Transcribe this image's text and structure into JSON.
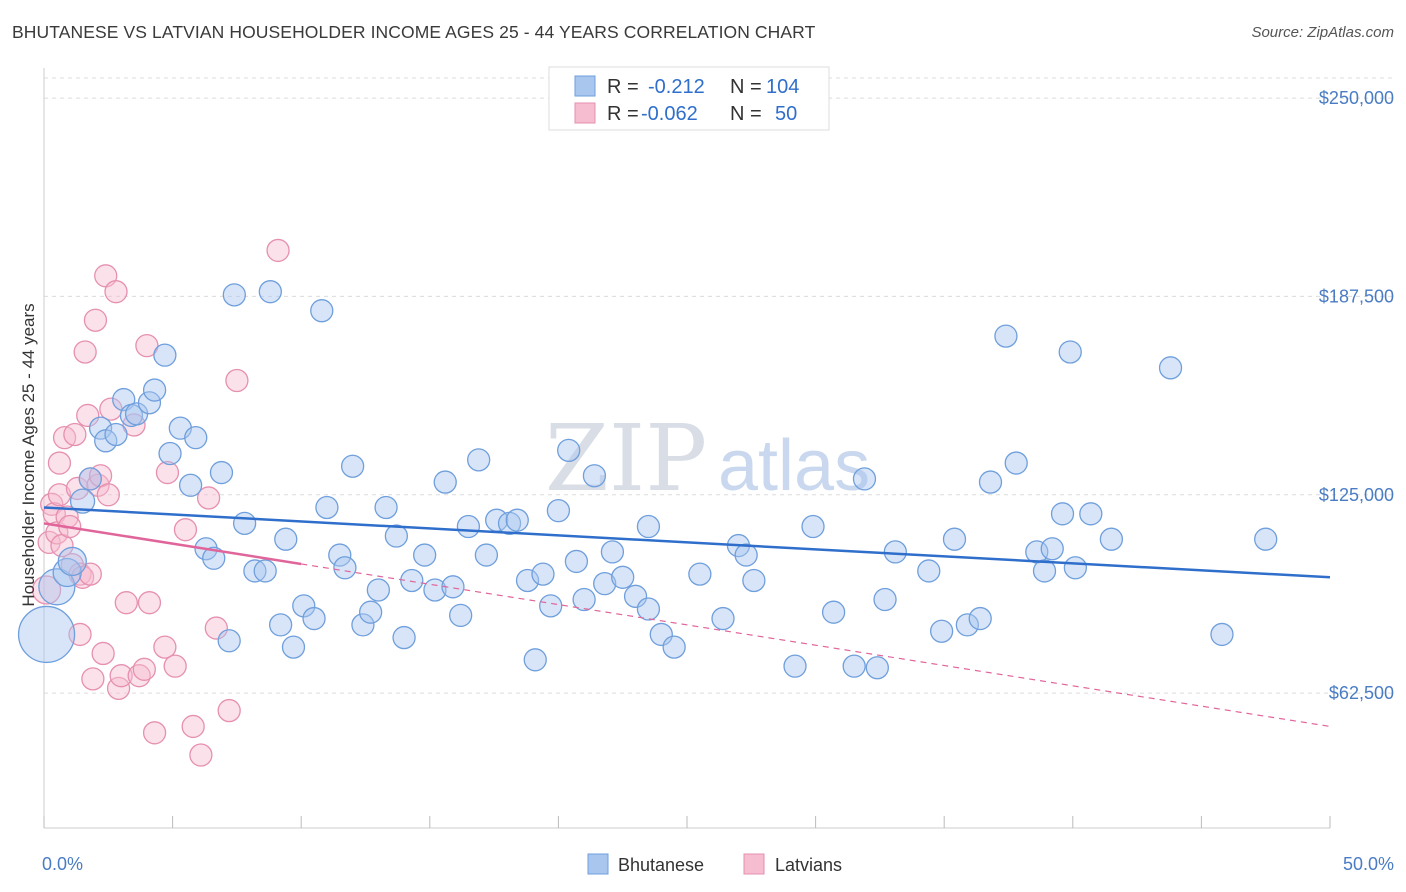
{
  "title": "BHUTANESE VS LATVIAN HOUSEHOLDER INCOME AGES 25 - 44 YEARS CORRELATION CHART",
  "source": "Source: ZipAtlas.com",
  "watermark": {
    "zip": "ZIP",
    "atlas": "atlas"
  },
  "colors": {
    "bhutanese_fill": "#a9c6ef",
    "bhutanese_stroke": "#6f9fdc",
    "bhutanese_line": "#2f6fcb",
    "latvian_fill": "#f6bcd0",
    "latvian_stroke": "#e690b0",
    "latvian_line": "#e0659a",
    "grid": "#dcdcdc",
    "axis_text": "#4a7cc4"
  },
  "legend": {
    "rows": [
      {
        "r_label": "R =",
        "r_value": "-0.212",
        "n_label": "N =",
        "n_value": "104"
      },
      {
        "r_label": "R =",
        "r_value": "-0.062",
        "n_label": "N =",
        "n_value": "50"
      }
    ]
  },
  "chart_data": {
    "type": "scatter",
    "title": "BHUTANESE VS LATVIAN HOUSEHOLDER INCOME AGES 25 - 44 YEARS CORRELATION CHART",
    "xlabel": "",
    "ylabel": "Householder Income Ages 25 - 44 years",
    "xlim": [
      0,
      50
    ],
    "ylim": [
      20000,
      262000
    ],
    "x_tick_labels": [
      "0.0%",
      "50.0%"
    ],
    "y_ticks": [
      62500,
      125000,
      187500,
      250000
    ],
    "y_tick_labels": [
      "$62,500",
      "$125,000",
      "$187,500",
      "$250,000"
    ],
    "grid": true,
    "legend_position": "top-center",
    "series": [
      {
        "name": "Bhutanese",
        "trend": {
          "x": [
            0,
            50
          ],
          "y": [
            121000,
            99000
          ],
          "solid": [
            0,
            50
          ]
        },
        "points": [
          [
            0.1,
            81000,
            28
          ],
          [
            0.5,
            96000,
            18
          ],
          [
            0.9,
            100500,
            14
          ],
          [
            1.1,
            104000,
            14
          ],
          [
            1.5,
            123000,
            12
          ],
          [
            1.8,
            130000,
            11
          ],
          [
            2.2,
            146000,
            11
          ],
          [
            2.4,
            142000,
            11
          ],
          [
            2.8,
            144000,
            11
          ],
          [
            3.1,
            155000,
            11
          ],
          [
            3.4,
            150000,
            11
          ],
          [
            3.6,
            150500,
            11
          ],
          [
            4.1,
            154000,
            11
          ],
          [
            4.3,
            158000,
            11
          ],
          [
            4.7,
            169000,
            11
          ],
          [
            4.9,
            138000,
            11
          ],
          [
            5.3,
            146000,
            11
          ],
          [
            5.7,
            128000,
            11
          ],
          [
            5.9,
            143000,
            11
          ],
          [
            6.3,
            108000,
            11
          ],
          [
            6.6,
            105000,
            11
          ],
          [
            6.9,
            132000,
            11
          ],
          [
            7.2,
            79000,
            11
          ],
          [
            7.4,
            188000,
            11
          ],
          [
            7.8,
            116000,
            11
          ],
          [
            8.2,
            101000,
            11
          ],
          [
            8.6,
            101000,
            11
          ],
          [
            8.8,
            189000,
            11
          ],
          [
            9.2,
            84000,
            11
          ],
          [
            9.4,
            111000,
            11
          ],
          [
            9.7,
            77000,
            11
          ],
          [
            10.1,
            90000,
            11
          ],
          [
            10.5,
            86000,
            11
          ],
          [
            10.8,
            183000,
            11
          ],
          [
            11.0,
            121000,
            11
          ],
          [
            11.5,
            106000,
            11
          ],
          [
            11.7,
            102000,
            11
          ],
          [
            12.0,
            134000,
            11
          ],
          [
            12.4,
            84000,
            11
          ],
          [
            12.7,
            88000,
            11
          ],
          [
            13.0,
            95000,
            11
          ],
          [
            13.3,
            121000,
            11
          ],
          [
            13.7,
            112000,
            11
          ],
          [
            14.0,
            80000,
            11
          ],
          [
            14.3,
            98000,
            11
          ],
          [
            14.8,
            106000,
            11
          ],
          [
            15.2,
            95000,
            11
          ],
          [
            15.6,
            129000,
            11
          ],
          [
            15.9,
            96000,
            11
          ],
          [
            16.2,
            87000,
            11
          ],
          [
            16.5,
            115000,
            11
          ],
          [
            16.9,
            136000,
            11
          ],
          [
            17.2,
            106000,
            11
          ],
          [
            17.6,
            117000,
            11
          ],
          [
            18.1,
            116000,
            11
          ],
          [
            18.4,
            117000,
            11
          ],
          [
            18.8,
            98000,
            11
          ],
          [
            19.1,
            73000,
            11
          ],
          [
            19.4,
            100000,
            11
          ],
          [
            19.7,
            90000,
            11
          ],
          [
            20.0,
            120000,
            11
          ],
          [
            20.4,
            139000,
            11
          ],
          [
            20.7,
            104000,
            11
          ],
          [
            21.0,
            92000,
            11
          ],
          [
            21.4,
            131000,
            11
          ],
          [
            21.8,
            97000,
            11
          ],
          [
            22.1,
            107000,
            11
          ],
          [
            22.5,
            99000,
            11
          ],
          [
            23.0,
            93000,
            11
          ],
          [
            23.5,
            89000,
            11
          ],
          [
            23.5,
            115000,
            11
          ],
          [
            24.0,
            81000,
            11
          ],
          [
            24.5,
            77000,
            11
          ],
          [
            25.5,
            100000,
            11
          ],
          [
            26.4,
            86000,
            11
          ],
          [
            27.0,
            109000,
            11
          ],
          [
            27.3,
            106000,
            11
          ],
          [
            27.6,
            98000,
            11
          ],
          [
            29.2,
            71000,
            11
          ],
          [
            29.9,
            115000,
            11
          ],
          [
            30.7,
            88000,
            11
          ],
          [
            31.5,
            71000,
            11
          ],
          [
            31.9,
            130000,
            11
          ],
          [
            32.4,
            70500,
            11
          ],
          [
            32.7,
            92000,
            11
          ],
          [
            33.1,
            107000,
            11
          ],
          [
            34.4,
            101000,
            11
          ],
          [
            34.9,
            82000,
            11
          ],
          [
            35.4,
            111000,
            11
          ],
          [
            35.9,
            84000,
            11
          ],
          [
            36.4,
            86000,
            11
          ],
          [
            36.8,
            129000,
            11
          ],
          [
            37.4,
            175000,
            11
          ],
          [
            37.8,
            135000,
            11
          ],
          [
            38.6,
            107000,
            11
          ],
          [
            38.9,
            101000,
            11
          ],
          [
            39.2,
            108000,
            11
          ],
          [
            39.6,
            119000,
            11
          ],
          [
            39.9,
            170000,
            11
          ],
          [
            40.1,
            102000,
            11
          ],
          [
            40.7,
            119000,
            11
          ],
          [
            41.5,
            111000,
            11
          ],
          [
            43.8,
            165000,
            11
          ],
          [
            45.8,
            81000,
            11
          ],
          [
            47.5,
            111000,
            11
          ]
        ]
      },
      {
        "name": "Latvians",
        "trend": {
          "x": [
            0,
            50
          ],
          "y": [
            116000,
            52000
          ],
          "solid": [
            0,
            10
          ]
        },
        "points": [
          [
            0.1,
            95000,
            14
          ],
          [
            0.2,
            110000,
            11
          ],
          [
            0.3,
            122000,
            11
          ],
          [
            0.4,
            119000,
            11
          ],
          [
            0.5,
            113000,
            11
          ],
          [
            0.6,
            125000,
            11
          ],
          [
            0.6,
            135000,
            11
          ],
          [
            0.7,
            109000,
            11
          ],
          [
            0.8,
            143000,
            11
          ],
          [
            0.9,
            118000,
            11
          ],
          [
            1.0,
            115000,
            11
          ],
          [
            1.1,
            103000,
            11
          ],
          [
            1.2,
            144000,
            11
          ],
          [
            1.3,
            127000,
            11
          ],
          [
            1.4,
            100000,
            11
          ],
          [
            1.4,
            81000,
            11
          ],
          [
            1.5,
            99000,
            11
          ],
          [
            1.6,
            170000,
            11
          ],
          [
            1.7,
            150000,
            11
          ],
          [
            1.8,
            130000,
            11
          ],
          [
            1.8,
            100000,
            11
          ],
          [
            1.9,
            67000,
            11
          ],
          [
            2.0,
            180000,
            11
          ],
          [
            2.1,
            128000,
            11
          ],
          [
            2.2,
            131000,
            11
          ],
          [
            2.3,
            75000,
            11
          ],
          [
            2.4,
            194000,
            11
          ],
          [
            2.5,
            125000,
            11
          ],
          [
            2.6,
            152000,
            11
          ],
          [
            2.8,
            189000,
            11
          ],
          [
            2.9,
            64000,
            11
          ],
          [
            3.0,
            68000,
            11
          ],
          [
            3.2,
            91000,
            11
          ],
          [
            3.5,
            147000,
            11
          ],
          [
            3.7,
            68000,
            11
          ],
          [
            3.9,
            70000,
            11
          ],
          [
            4.0,
            172000,
            11
          ],
          [
            4.1,
            91000,
            11
          ],
          [
            4.3,
            50000,
            11
          ],
          [
            4.7,
            77000,
            11
          ],
          [
            4.8,
            132000,
            11
          ],
          [
            5.1,
            71000,
            11
          ],
          [
            5.5,
            114000,
            11
          ],
          [
            5.8,
            52000,
            11
          ],
          [
            6.1,
            43000,
            11
          ],
          [
            6.4,
            124000,
            11
          ],
          [
            6.7,
            83000,
            11
          ],
          [
            7.2,
            57000,
            11
          ],
          [
            7.5,
            161000,
            11
          ],
          [
            9.1,
            202000,
            11
          ]
        ]
      }
    ]
  }
}
